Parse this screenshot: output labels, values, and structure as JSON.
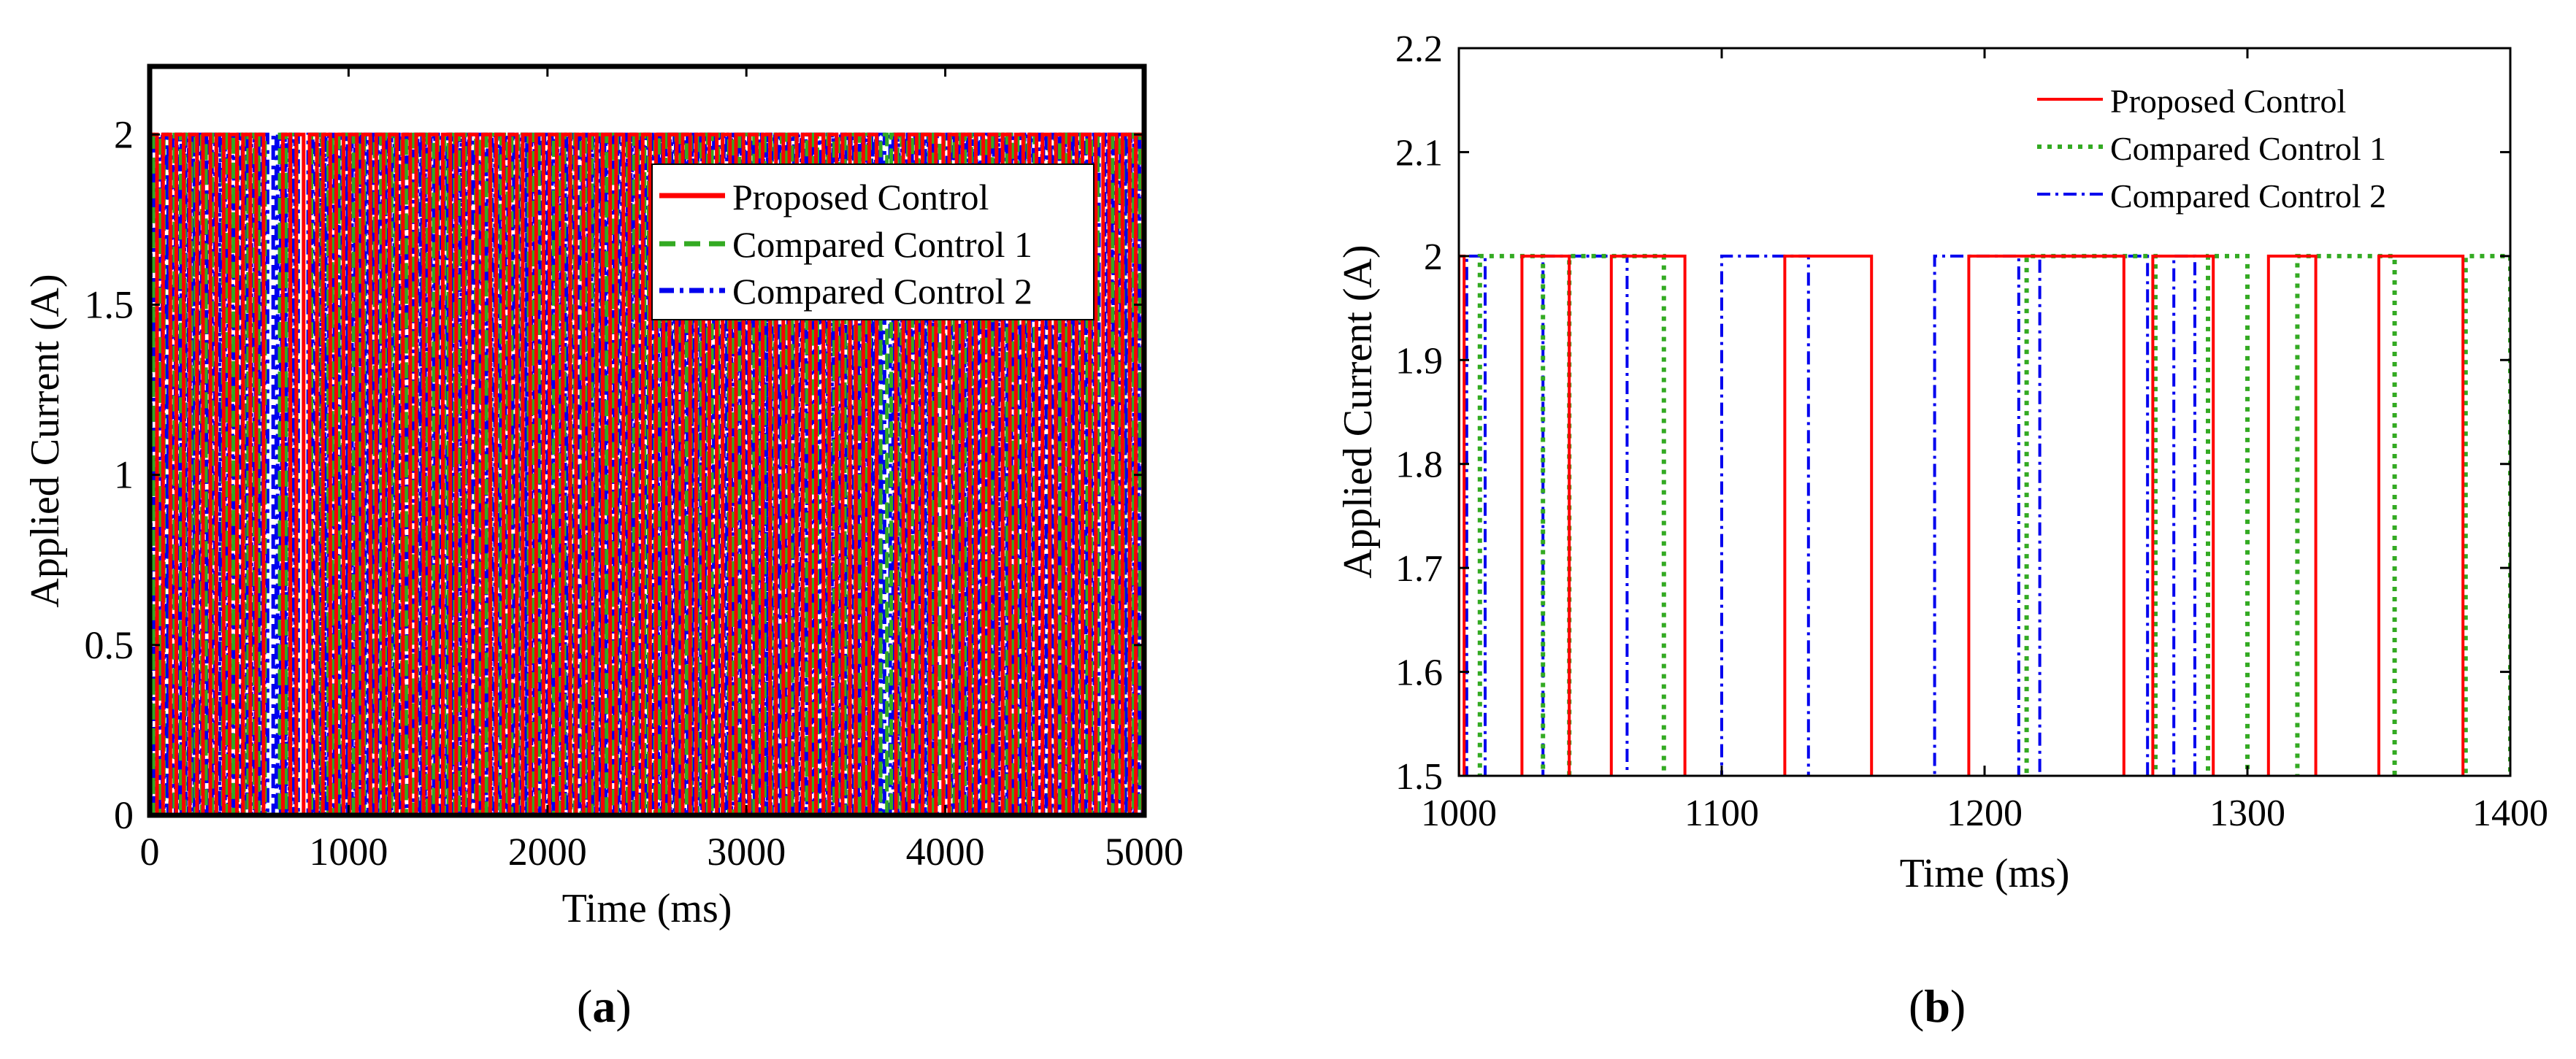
{
  "colors": {
    "series1": "#ff0000",
    "series2": "#33aa22",
    "series3": "#0000ee",
    "axis": "#000000"
  },
  "panels": {
    "a": {
      "label": "(a)",
      "label_letter": "a"
    },
    "b": {
      "label": "(b)",
      "label_letter": "b"
    }
  },
  "chart_data": [
    {
      "id": "a",
      "type": "line",
      "xlabel": "Time (ms)",
      "ylabel": "Applied Current (A)",
      "xlim": [
        0,
        5000
      ],
      "ylim": [
        0,
        2.2
      ],
      "xticks": [
        0,
        1000,
        2000,
        3000,
        4000,
        5000
      ],
      "xtick_labels": [
        "0",
        "1000",
        "2000",
        "3000",
        "4000",
        "5000"
      ],
      "yticks": [
        0,
        0.5,
        1,
        1.5,
        2
      ],
      "ytick_labels": [
        "0",
        "0.5",
        "1",
        "1.5",
        "2"
      ],
      "legend": [
        "Proposed Control",
        "Compared Control 1",
        "Compared Control 2"
      ],
      "legend_position": "top-right",
      "grid": false,
      "pulse_level": 2,
      "series": [
        {
          "name": "Proposed Control",
          "style": "solid",
          "step": 67,
          "duty": 0.55,
          "phase": 0
        },
        {
          "name": "Compared Control 1",
          "style": "dashed",
          "step": 53,
          "duty": 0.6,
          "phase": 18
        },
        {
          "name": "Compared Control 2",
          "style": "dashdot",
          "step": 22,
          "duty": 0.7,
          "phase": 5
        }
      ],
      "gaps": [
        [
          20,
          30
        ],
        [
          160,
          175
        ],
        [
          590,
          610
        ],
        [
          690,
          705
        ],
        [
          750,
          790
        ],
        [
          1300,
          1320
        ],
        [
          3680,
          3720
        ],
        [
          3960,
          3990
        ],
        [
          4440,
          4470
        ],
        [
          4760,
          4790
        ]
      ]
    },
    {
      "id": "b",
      "type": "line",
      "xlabel": "Time (ms)",
      "ylabel": "Applied Current (A)",
      "xlim": [
        1000,
        1400
      ],
      "ylim": [
        1.5,
        2.2
      ],
      "xticks": [
        1000,
        1100,
        1200,
        1300,
        1400
      ],
      "xtick_labels": [
        "1000",
        "1100",
        "1200",
        "1300",
        "1400"
      ],
      "yticks": [
        1.5,
        1.6,
        1.7,
        1.8,
        1.9,
        2.0,
        2.1,
        2.2
      ],
      "ytick_labels": [
        "1.5",
        "1.6",
        "1.7",
        "1.8",
        "1.9",
        "2",
        "2.1",
        "2.2"
      ],
      "legend": [
        "Proposed Control",
        "Compared Control 1",
        "Compared Control 2"
      ],
      "legend_position": "top-right",
      "grid": false,
      "series": [
        {
          "name": "Proposed Control",
          "style": "solid",
          "pulses": [
            [
              1000,
              1002
            ],
            [
              1024,
              1042
            ],
            [
              1058,
              1086
            ],
            [
              1124,
              1157
            ],
            [
              1194,
              1253
            ],
            [
              1264,
              1287
            ],
            [
              1308,
              1326
            ],
            [
              1350,
              1382
            ]
          ]
        },
        {
          "name": "Compared Control 1",
          "style": "dotted",
          "pulses": [
            [
              1008,
              1032
            ],
            [
              1042,
              1078
            ],
            [
              1216,
              1265
            ],
            [
              1285,
              1300
            ],
            [
              1319,
              1356
            ],
            [
              1383,
              1400
            ]
          ]
        },
        {
          "name": "Compared Control 2",
          "style": "dashdot",
          "pulses": [
            [
              1003,
              1010
            ],
            [
              1032,
              1064
            ],
            [
              1100,
              1133
            ],
            [
              1181,
              1213
            ],
            [
              1221,
              1262
            ],
            [
              1272,
              1280
            ]
          ]
        }
      ]
    }
  ]
}
